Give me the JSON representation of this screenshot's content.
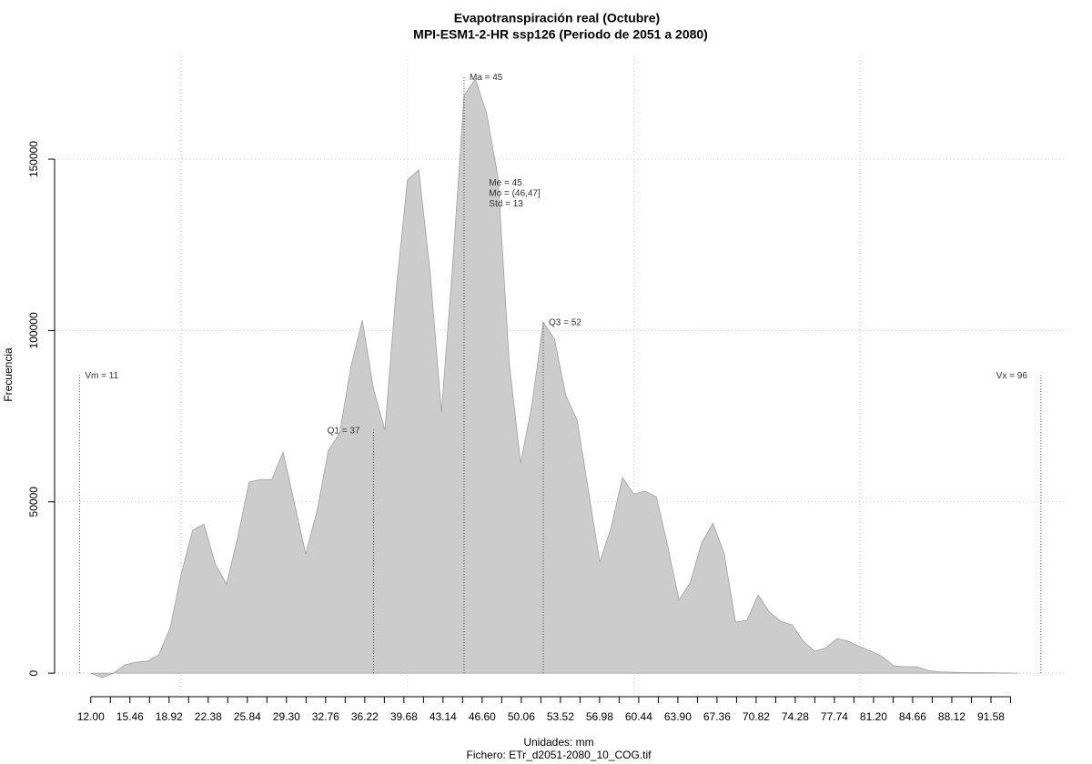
{
  "chart_data": {
    "type": "area",
    "title": "Evapotranspiración real (Octubre)",
    "subtitle": "MPI-ESM1-2-HR ssp126 (Periodo de 2051 a 2080)",
    "y_label": "Frecuencia",
    "x_label": "Unidades: mm",
    "caption": "Fichero: ETr_d2051-2080_10_COG.tif",
    "color": "#cccccc",
    "x": [
      12,
      13,
      14,
      15,
      16,
      17,
      18,
      19,
      20,
      21,
      22,
      23,
      24,
      25,
      26,
      27,
      28,
      29,
      30,
      31,
      32,
      33,
      34,
      35,
      36,
      37,
      38,
      39,
      40,
      41,
      42,
      43,
      44,
      45,
      46,
      47,
      48,
      49,
      50,
      51,
      52,
      53,
      54,
      55,
      56,
      57,
      58,
      59,
      60,
      61,
      62,
      63,
      64,
      65,
      66,
      67,
      68,
      69,
      70,
      71,
      72,
      73,
      74,
      75,
      76,
      77,
      78,
      79,
      80,
      81,
      82,
      83,
      84,
      85,
      86,
      87,
      88,
      89,
      90,
      91,
      92,
      93,
      94
    ],
    "values": [
      0,
      -1300,
      0,
      2400,
      3200,
      3500,
      5300,
      13000,
      29000,
      41700,
      43500,
      31900,
      26000,
      39800,
      55800,
      56500,
      56500,
      64500,
      49600,
      34800,
      47300,
      65000,
      70000,
      89500,
      103000,
      82800,
      70900,
      112000,
      144000,
      146800,
      117000,
      76200,
      119500,
      168600,
      173400,
      163300,
      144700,
      90300,
      61300,
      78300,
      102500,
      97400,
      81000,
      73800,
      53100,
      32400,
      42500,
      57100,
      52300,
      53100,
      51500,
      37200,
      21300,
      26500,
      38000,
      43800,
      34800,
      14900,
      15400,
      22800,
      17800,
      15100,
      14100,
      9300,
      6400,
      7400,
      10100,
      9300,
      7700,
      6400,
      4800,
      2100,
      1900,
      1900,
      800,
      400,
      300,
      200,
      150,
      150,
      100,
      50,
      0
    ],
    "xlim": [
      8.8,
      98.1
    ],
    "ylim": [
      -7400,
      180000
    ],
    "yticks": [
      0,
      50000,
      100000,
      150000
    ],
    "xticks": [
      {
        "value": 12,
        "label": "12.00"
      },
      {
        "value": 15.46,
        "label": "15.46"
      },
      {
        "value": 18.92,
        "label": "18.92"
      },
      {
        "value": 22.38,
        "label": "22.38"
      },
      {
        "value": 25.84,
        "label": "25.84"
      },
      {
        "value": 29.3,
        "label": "29.30"
      },
      {
        "value": 32.76,
        "label": "32.76"
      },
      {
        "value": 36.22,
        "label": "36.22"
      },
      {
        "value": 39.68,
        "label": "39.68"
      },
      {
        "value": 43.14,
        "label": "43.14"
      },
      {
        "value": 46.6,
        "label": "46.60"
      },
      {
        "value": 50.06,
        "label": "50.06"
      },
      {
        "value": 53.52,
        "label": "53.52"
      },
      {
        "value": 56.98,
        "label": "56.98"
      },
      {
        "value": 60.44,
        "label": "60.44"
      },
      {
        "value": 63.9,
        "label": "63.90"
      },
      {
        "value": 67.36,
        "label": "67.36"
      },
      {
        "value": 70.82,
        "label": "70.82"
      },
      {
        "value": 74.28,
        "label": "74.28"
      },
      {
        "value": 77.74,
        "label": "77.74"
      },
      {
        "value": 81.2,
        "label": "81.20"
      },
      {
        "value": 84.66,
        "label": "84.66"
      },
      {
        "value": 88.12,
        "label": "88.12"
      },
      {
        "value": 91.58,
        "label": "91.58"
      }
    ],
    "xminor_ticks": [
      13.73,
      17.19,
      20.65,
      24.11,
      27.57,
      31.03,
      34.49,
      37.95,
      41.41,
      44.87,
      48.33,
      51.79,
      55.25,
      58.71,
      62.17,
      65.63,
      69.09,
      72.55,
      76.01,
      79.47,
      82.93,
      86.39,
      89.85,
      93.31
    ],
    "xgrid": [
      20,
      40,
      60,
      80
    ],
    "grid": true,
    "annotations": [
      {
        "label": "Vm = 11",
        "x": 11,
        "y": 87000,
        "side": "right"
      },
      {
        "label": "Q1 = 37",
        "x": 37,
        "y": 71000,
        "side": "left"
      },
      {
        "label": "Ma = 45",
        "x": 45,
        "y": 174000,
        "side": "right"
      },
      {
        "label": "Q3 = 52",
        "x": 52,
        "y": 102500,
        "side": "right"
      },
      {
        "label": "Vx = 96",
        "x": 96,
        "y": 87000,
        "side": "left"
      }
    ],
    "stats": {
      "x": 47.2,
      "y": 143000,
      "lines": [
        "Me = 45",
        "Mo = (46,47]",
        "Std = 13"
      ]
    }
  }
}
